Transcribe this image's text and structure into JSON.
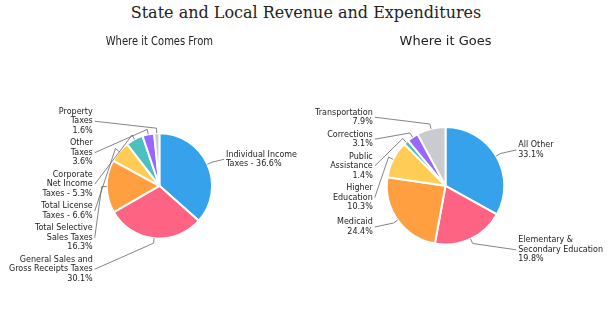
{
  "title": "State and Local Revenue and Expenditures",
  "chart_data": [
    {
      "type": "pie",
      "title": "Where it Comes From",
      "values": [
        36.6,
        30.1,
        16.3,
        6.6,
        5.3,
        3.6,
        1.6
      ],
      "value_labels": [
        "Individual Income\nTaxes - 36.6%",
        "General Sales and\nGross Receipts Taxes\n30.1%",
        "Total Selective\nSales Taxes\n16.3%",
        "Total License\nTaxes - 6.6%",
        "Corporate\nNet Income\nTaxes - 5.3%",
        "Other\nTaxes\n3.6%",
        "Property\nTaxes\n1.6%"
      ],
      "data_labels": true
    },
    {
      "type": "pie",
      "title": "Where it Goes",
      "values": [
        33.1,
        19.8,
        24.4,
        10.3,
        1.4,
        3.1,
        7.9
      ],
      "value_labels": [
        "All Other\n33.1%",
        "Elementary &\nSecondary Education\n19.8%",
        "Medicaid\n24.4%",
        "Higher\nEducation\n10.3%",
        "Public\nAssistance\n1.4%",
        "Corrections\n3.1%",
        "Transportation\n7.9%"
      ],
      "data_labels": true
    }
  ]
}
